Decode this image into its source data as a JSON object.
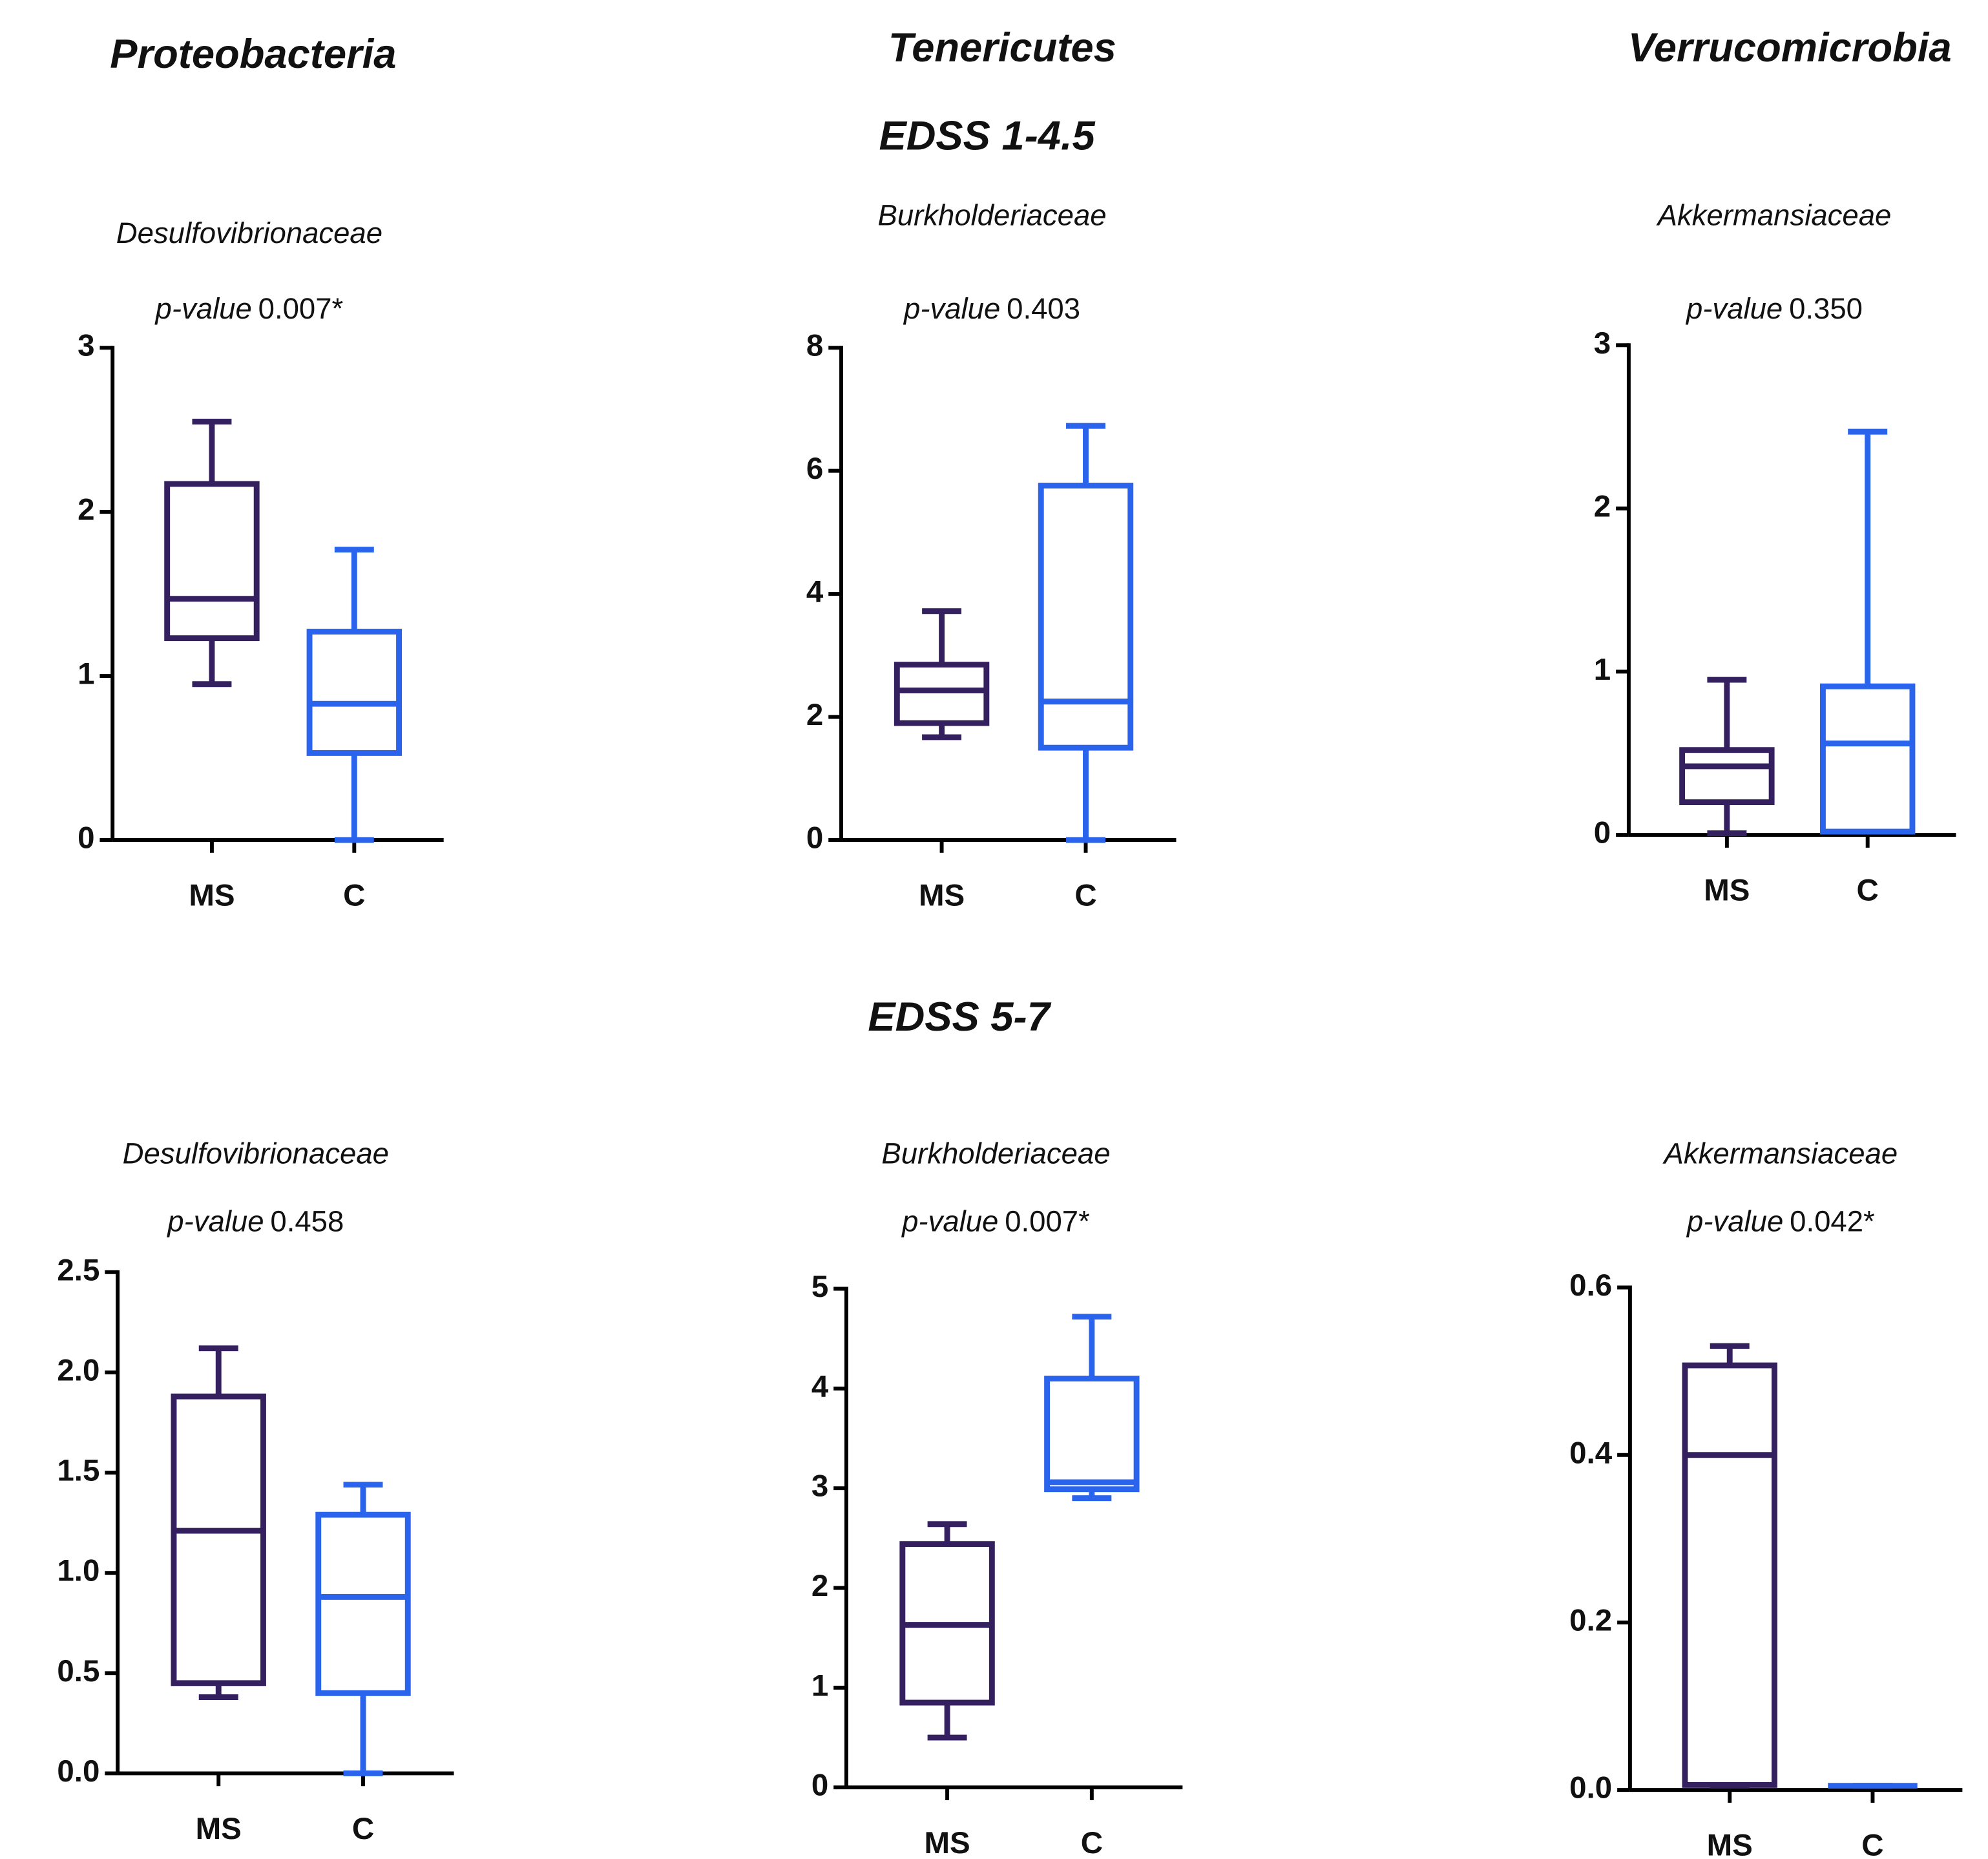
{
  "headings": {
    "columns": [
      "Proteobacteria",
      "Tenericutes",
      "Verrucomicrobia"
    ],
    "rows": [
      "EDSS 1-4.5",
      "EDSS 5-7"
    ]
  },
  "chart_data": [
    {
      "type": "box",
      "title": "Desulfovibrionaceae",
      "p_label": "p-value",
      "p_value": "0.007*",
      "categories": [
        "MS",
        "C"
      ],
      "ylim": [
        0,
        3
      ],
      "yticks": [
        0,
        1,
        2,
        3
      ],
      "boxes": [
        {
          "color": "#35205f",
          "min": 0.95,
          "q1": 1.23,
          "median": 1.47,
          "q3": 2.17,
          "max": 2.55
        },
        {
          "color": "#2a63ec",
          "min": 0,
          "q1": 0.53,
          "median": 0.83,
          "q3": 1.27,
          "max": 1.77
        }
      ]
    },
    {
      "type": "box",
      "title": "Burkholderiaceae",
      "p_label": "p-value",
      "p_value": "0.403",
      "categories": [
        "MS",
        "C"
      ],
      "ylim": [
        0,
        8
      ],
      "yticks": [
        0,
        2,
        4,
        6,
        8
      ],
      "boxes": [
        {
          "color": "#35205f",
          "min": 1.67,
          "q1": 1.9,
          "median": 2.43,
          "q3": 2.85,
          "max": 3.72
        },
        {
          "color": "#2a63ec",
          "min": 0,
          "q1": 1.5,
          "median": 2.25,
          "q3": 5.76,
          "max": 6.73
        }
      ]
    },
    {
      "type": "box",
      "title": "Akkermansiaceae",
      "p_label": "p-value",
      "p_value": "0.350",
      "categories": [
        "MS",
        "C"
      ],
      "ylim": [
        0,
        3
      ],
      "yticks": [
        0,
        1,
        2,
        3
      ],
      "boxes": [
        {
          "color": "#35205f",
          "min": 0.01,
          "q1": 0.2,
          "median": 0.42,
          "q3": 0.52,
          "max": 0.95
        },
        {
          "color": "#2a63ec",
          "min": 0.02,
          "q1": 0.02,
          "median": 0.56,
          "q3": 0.91,
          "max": 2.47
        }
      ]
    },
    {
      "type": "box",
      "title": "Desulfovibrionaceae",
      "p_label": "p-value",
      "p_value": "0.458",
      "categories": [
        "MS",
        "C"
      ],
      "ylim": [
        0,
        2.5
      ],
      "yticks": [
        {
          "value": 0,
          "label": "0.0"
        },
        0.5,
        {
          "value": 1,
          "label": "1.0"
        },
        1.5,
        {
          "value": 2,
          "label": "2.0"
        },
        2.5
      ],
      "boxes": [
        {
          "color": "#35205f",
          "min": 0.38,
          "q1": 0.45,
          "median": 1.21,
          "q3": 1.88,
          "max": 2.12
        },
        {
          "color": "#2a63ec",
          "min": 0,
          "q1": 0.4,
          "median": 0.88,
          "q3": 1.29,
          "max": 1.44
        }
      ]
    },
    {
      "type": "box",
      "title": "Burkholderiaceae",
      "p_label": "p-value",
      "p_value": "0.007*",
      "categories": [
        "MS",
        "C"
      ],
      "ylim": [
        0,
        5
      ],
      "yticks": [
        0,
        1,
        2,
        3,
        4,
        5
      ],
      "boxes": [
        {
          "color": "#35205f",
          "min": 0.5,
          "q1": 0.85,
          "median": 1.63,
          "q3": 2.44,
          "max": 2.64
        },
        {
          "color": "#2a63ec",
          "min": 2.9,
          "q1": 2.99,
          "median": 3.06,
          "q3": 4.1,
          "max": 4.72
        }
      ]
    },
    {
      "type": "box",
      "title": "Akkermansiaceae",
      "p_label": "p-value",
      "p_value": "0.042*",
      "categories": [
        "MS",
        "C"
      ],
      "ylim": [
        0,
        0.6
      ],
      "yticks": [
        {
          "value": 0,
          "label": "0.0"
        },
        0.2,
        0.4,
        0.6
      ],
      "boxes": [
        {
          "color": "#35205f",
          "min": 0.005,
          "q1": 0.006,
          "median": 0.4,
          "q3": 0.507,
          "max": 0.53
        },
        {
          "color": "#2a63ec",
          "min": 0.005,
          "q1": 0.005,
          "median": 0.005,
          "q3": 0.005,
          "max": 0.005
        }
      ]
    }
  ]
}
